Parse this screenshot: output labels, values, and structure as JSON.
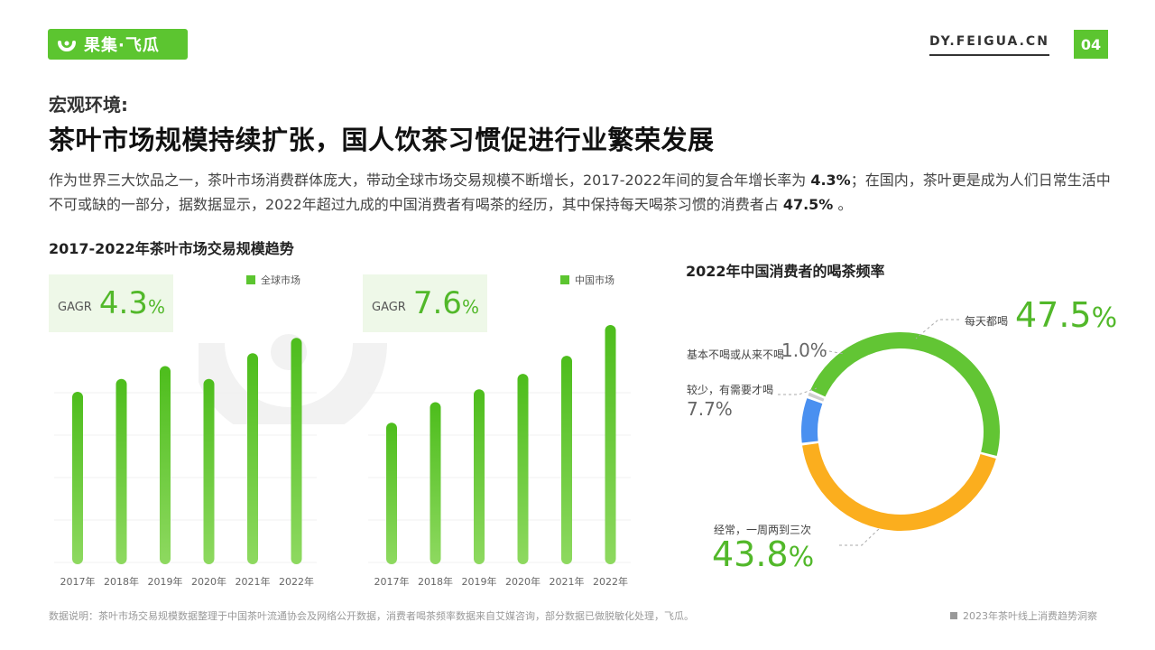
{
  "header": {
    "logo_text": "果集·飞瓜",
    "site_url": "DY.FEIGUA.CN",
    "page_number": "04",
    "brand_color": "#5cc530"
  },
  "section_label": "宏观环境:",
  "headline": "茶叶市场规模持续扩张，国人饮茶习惯促进行业繁荣发展",
  "intro": {
    "part1": "作为世界三大饮品之一，茶叶市场消费群体庞大，带动全球市场交易规模不断增长，2017-2022年间的复合年增长率为",
    "cagr_global": "4.3%",
    "part2": "；在国内，茶叶更是成为人们日常生活中不可或缺的一部分，据数据显示，2022年超过九成的中国消费者有喝茶的经历，其中保持每天喝茶习惯的消费者占",
    "daily_share": "47.5%",
    "part3": "。"
  },
  "left_panel_title": "2017-2022年茶叶市场交易规模趋势",
  "donut_panel_title": "2022年中国消费者的喝茶频率",
  "cagr_cards": [
    {
      "label": "GAGR",
      "value": "4.3",
      "unit": "%"
    },
    {
      "label": "GAGR",
      "value": "7.6",
      "unit": "%"
    }
  ],
  "chart_data": [
    {
      "type": "bar",
      "series": [
        {
          "name": "全球市场",
          "values": [
            67,
            72,
            77,
            72,
            82,
            88
          ]
        }
      ],
      "categories": [
        "2017年",
        "2018年",
        "2019年",
        "2020年",
        "2021年",
        "2022年"
      ],
      "ylim": [
        0,
        100
      ],
      "grid": true,
      "legend": "top-right",
      "color": "#5cc530"
    },
    {
      "type": "bar",
      "series": [
        {
          "name": "中国市场",
          "values": [
            55,
            63,
            68,
            74,
            81,
            93
          ]
        }
      ],
      "categories": [
        "2017年",
        "2018年",
        "2019年",
        "2020年",
        "2021年",
        "2022年"
      ],
      "ylim": [
        0,
        100
      ],
      "grid": true,
      "legend": "top-right",
      "color": "#5cc530"
    },
    {
      "type": "pie",
      "title": "2022年中国消费者的喝茶频率",
      "slices": [
        {
          "label": "每天都喝",
          "value": 47.5,
          "display": "47.5",
          "color": "#62c534"
        },
        {
          "label": "经常，一周两到三次",
          "value": 43.8,
          "display": "43.8",
          "color": "#fbae1e"
        },
        {
          "label": "较少，有需要才喝",
          "value": 7.7,
          "display": "7.7%",
          "color": "#4a90f0"
        },
        {
          "label": "基本不喝或从来不喝",
          "value": 1.0,
          "display": "1.0%",
          "color": "#cfcfcf"
        }
      ]
    }
  ],
  "footnote": "数据说明：茶叶市场交易规模数据整理于中国茶叶流通协会及网络公开数据，消费者喝茶频率数据来自艾媒咨询，部分数据已做脱敏化处理，飞瓜。",
  "report_name": "2023年茶叶线上消费趋势洞察"
}
